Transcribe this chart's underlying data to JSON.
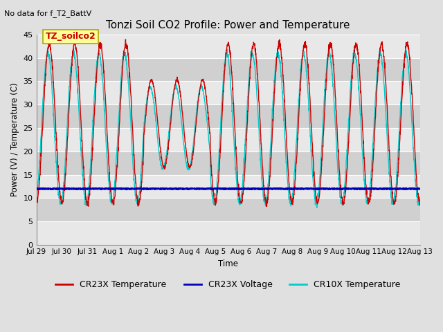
{
  "title": "Tonzi Soil CO2 Profile: Power and Temperature",
  "no_data_label": "No data for f_T2_BattV",
  "ylabel": "Power (V) / Temperature (C)",
  "xlabel": "Time",
  "ylim": [
    0,
    45
  ],
  "yticks": [
    0,
    5,
    10,
    15,
    20,
    25,
    30,
    35,
    40,
    45
  ],
  "x_tick_labels": [
    "Jul 29",
    "Jul 30",
    "Jul 31",
    "Aug 1",
    "Aug 2",
    "Aug 3",
    "Aug 4",
    "Aug 5",
    "Aug 6",
    "Aug 7",
    "Aug 8",
    "Aug 9",
    "Aug 10",
    "Aug 11",
    "Aug 12",
    "Aug 13"
  ],
  "legend_entries": [
    {
      "label": "CR23X Temperature",
      "color": "#cc0000"
    },
    {
      "label": "CR23X Voltage",
      "color": "#0000bb"
    },
    {
      "label": "CR10X Temperature",
      "color": "#00cccc"
    }
  ],
  "annotation_label": "TZ_soilco2",
  "fig_bg_color": "#e0e0e0",
  "plot_bg_light": "#e8e8e8",
  "plot_bg_dark": "#d0d0d0",
  "cr23x_temp_color": "#cc0000",
  "cr23x_volt_color": "#0000bb",
  "cr10x_temp_color": "#00cccc"
}
